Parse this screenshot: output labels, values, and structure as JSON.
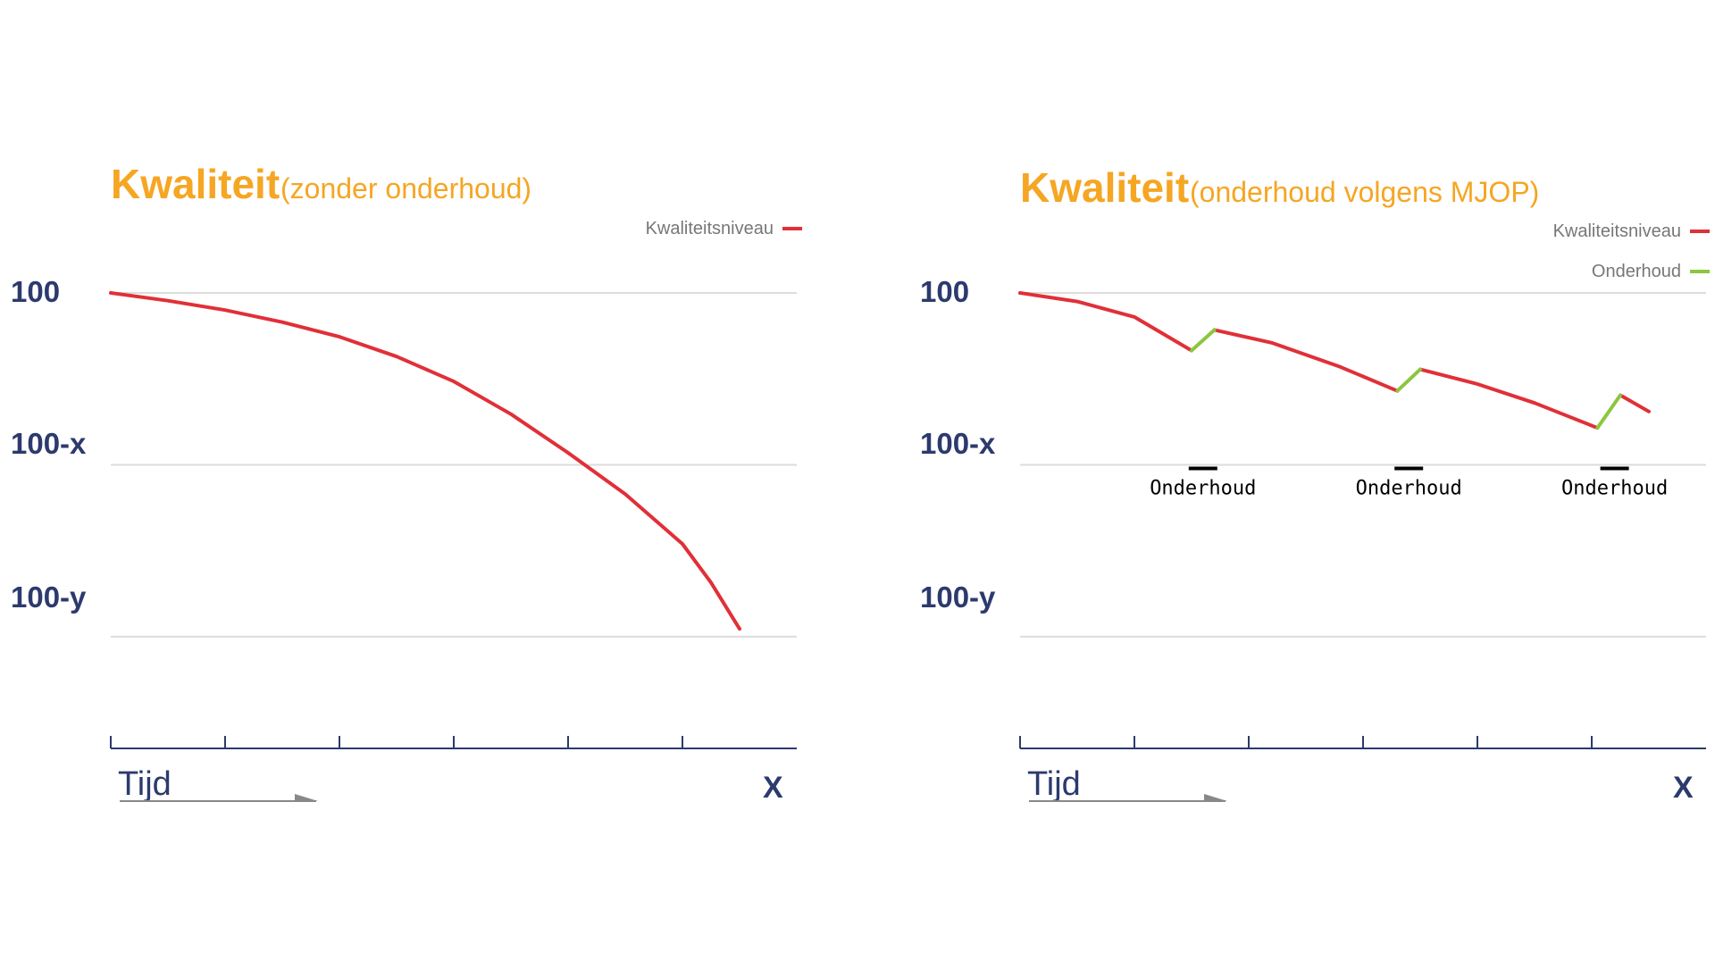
{
  "colors": {
    "title": "#f5a623",
    "axis_text": "#2c3a6e",
    "axis": "#2c3a6e",
    "grid": "#dcdcdc",
    "quality_line": "#e03038",
    "maintenance_line": "#8cc63f",
    "legend_text": "#777777",
    "annotation": "#000000",
    "arrow": "#888888"
  },
  "chart_data": [
    {
      "type": "line",
      "title": "Kwaliteit",
      "subtitle": "(zonder onderhoud)",
      "xlabel": "Tijd",
      "x_end_label": "X",
      "yticks": [
        "100",
        "100-x",
        "100-y"
      ],
      "ytick_values": [
        100,
        80,
        60
      ],
      "ylim": [
        47,
        100
      ],
      "xlim": [
        0,
        6
      ],
      "x_tick_count": 6,
      "grid": true,
      "legend_position": "top-right",
      "series": [
        {
          "name": "Kwaliteitsniveau",
          "color": "#e03038",
          "x": [
            0,
            0.5,
            1,
            1.5,
            2,
            2.5,
            3,
            3.5,
            4,
            4.5,
            5,
            5.25,
            5.5
          ],
          "y": [
            100,
            99.1,
            98,
            96.6,
            94.9,
            92.6,
            89.7,
            85.9,
            81.4,
            76.6,
            70.8,
            66.3,
            60.9
          ]
        }
      ],
      "annotations": []
    },
    {
      "type": "line",
      "title": "Kwaliteit",
      "subtitle": "(onderhoud volgens MJOP)",
      "xlabel": "Tijd",
      "x_end_label": "X",
      "yticks": [
        "100",
        "100-x",
        "100-y"
      ],
      "ytick_values": [
        100,
        80,
        60
      ],
      "ylim": [
        47,
        100
      ],
      "xlim": [
        0,
        6
      ],
      "x_tick_count": 6,
      "grid": true,
      "legend_position": "top-right",
      "series": [
        {
          "name": "Kwaliteitsniveau",
          "color": "#e03038",
          "segments": [
            {
              "x": [
                0,
                0.5,
                1,
                1.5
              ],
              "y": [
                100,
                99,
                97.2,
                93.3
              ]
            },
            {
              "x": [
                1.7,
                2.2,
                2.8,
                3.3
              ],
              "y": [
                95.7,
                94.2,
                91.4,
                88.6
              ]
            },
            {
              "x": [
                3.5,
                4,
                4.5,
                5.05
              ],
              "y": [
                91.1,
                89.4,
                87.2,
                84.3
              ]
            },
            {
              "x": [
                5.25,
                5.5
              ],
              "y": [
                88.1,
                86.2
              ]
            }
          ]
        },
        {
          "name": "Onderhoud",
          "color": "#8cc63f",
          "segments": [
            {
              "x": [
                1.5,
                1.7
              ],
              "y": [
                93.3,
                95.7
              ]
            },
            {
              "x": [
                3.3,
                3.5
              ],
              "y": [
                88.6,
                91.1
              ]
            },
            {
              "x": [
                5.05,
                5.25
              ],
              "y": [
                84.3,
                88.1
              ]
            }
          ]
        }
      ],
      "annotations": [
        {
          "text": "Onderhoud",
          "x": 1.6,
          "y": 80
        },
        {
          "text": "Onderhoud",
          "x": 3.4,
          "y": 80
        },
        {
          "text": "Onderhoud",
          "x": 5.2,
          "y": 80
        }
      ]
    }
  ]
}
